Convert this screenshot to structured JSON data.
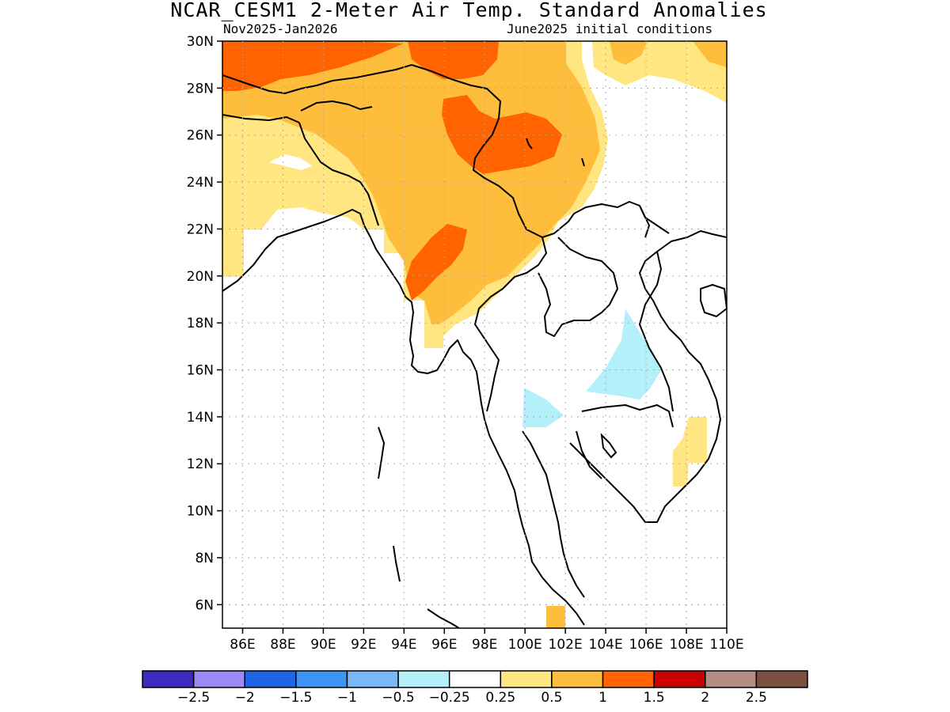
{
  "title": "NCAR_CESM1 2-Meter Air Temp. Standard Anomalies",
  "subtitle_left": "Nov2025-Jan2026",
  "subtitle_right": "June2025 initial conditions",
  "lat_labels": [
    "30N",
    "28N",
    "26N",
    "24N",
    "22N",
    "20N",
    "18N",
    "16N",
    "14N",
    "12N",
    "10N",
    "8N",
    "6N"
  ],
  "lon_labels": [
    "86E",
    "88E",
    "90E",
    "92E",
    "94E",
    "96E",
    "98E",
    "100E",
    "102E",
    "104E",
    "106E",
    "108E",
    "110E"
  ],
  "colorbar": {
    "colors": [
      "#3b2bbf",
      "#9b8af5",
      "#1f63e6",
      "#3c95f5",
      "#78b8f7",
      "#b4f0fa",
      "#ffffff",
      "#ffe680",
      "#ffbd3c",
      "#ff6400",
      "#c80000",
      "#b48c82",
      "#7b5040"
    ],
    "labels": [
      "-2.5",
      "-2",
      "-1.5",
      "-1",
      "-0.5",
      "-0.25",
      "0.25",
      "0.5",
      "1",
      "1.5",
      "2",
      "2.5"
    ]
  },
  "map": {
    "lon_range": [
      85,
      110
    ],
    "lat_range": [
      5,
      30
    ],
    "grid": true
  }
}
